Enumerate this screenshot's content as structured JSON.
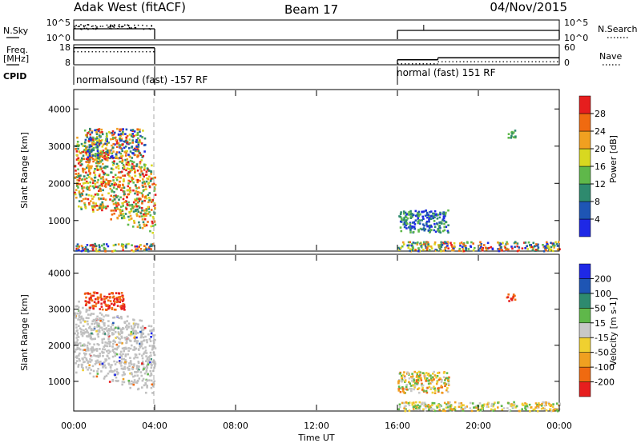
{
  "header": {
    "station": "Adak West (fitACF)",
    "beam": "Beam 17",
    "date": "04/Nov/2015"
  },
  "side_labels": {
    "nsky": "N.Sky",
    "freq_line1": "Freq.",
    "freq_line2": "[MHz]",
    "cpid": "CPID",
    "nsearch": "N.Search",
    "nave": "Nave"
  },
  "cpid_labels": [
    {
      "start_hour": 0,
      "text": "normalsound (fast) -157 RF"
    },
    {
      "start_hour": 16,
      "text": "normal (fast) 151 RF"
    }
  ],
  "colors": {
    "power": [
      "#1e28e6",
      "#1e55b4",
      "#2e8a6e",
      "#5fb84a",
      "#d8d820",
      "#f0a020",
      "#f06a10",
      "#e61e1e"
    ],
    "velocity": [
      "#e61e1e",
      "#f06a10",
      "#f0a020",
      "#f0d030",
      "#c8c8c8",
      "#5fb84a",
      "#2e8a6e",
      "#1e55b4",
      "#1e28e6"
    ],
    "scatter_gray": "#c0c0c0"
  },
  "chart_data": [
    {
      "type": "line",
      "title": "N.Sky / N.Search",
      "left_ticks": [
        "10^5",
        "10^0"
      ],
      "right_ticks": [
        "10^5",
        "10^0"
      ],
      "segments": [
        {
          "x_start_hour": 0,
          "x_end_hour": 4,
          "level": "noisy"
        },
        {
          "x_start_hour": 16,
          "x_end_hour": 24,
          "level": "flat"
        }
      ]
    },
    {
      "type": "line",
      "title": "Freq. / Nave",
      "left_ticks": [
        "18",
        "8"
      ],
      "right_ticks": [
        "60",
        "0"
      ],
      "freq_segments": [
        {
          "x_start_hour": 0,
          "x_end_hour": 4,
          "freq_mhz": 16.5
        },
        {
          "x_start_hour": 16,
          "x_end_hour": 18,
          "freq_mhz": 10.5
        },
        {
          "x_start_hour": 18,
          "x_end_hour": 24,
          "freq_mhz": 11.5
        }
      ]
    },
    {
      "type": "heatmap",
      "quantity": "Power",
      "ylabel": "Slant Range [km]",
      "colorbar_label": "Power [dB]",
      "colorbar_ticks": [
        "4",
        "8",
        "12",
        "16",
        "20",
        "24",
        "28"
      ],
      "yticks": [
        "1000",
        "2000",
        "3000",
        "4000"
      ],
      "ylim": [
        200,
        4500
      ],
      "xlim_hours": [
        0,
        24
      ],
      "dashed_line_hour": 4,
      "scatter_regions": [
        {
          "x_hours": [
            0,
            4
          ],
          "range_km": [
            1200,
            2600
          ],
          "values": "8-28 dB"
        },
        {
          "x_hours": [
            0.5,
            3.5
          ],
          "range_km": [
            2700,
            3500
          ],
          "values": "8-16 dB"
        },
        {
          "x_hours": [
            0,
            4
          ],
          "range_km": [
            200,
            400
          ],
          "values": "mixed"
        },
        {
          "x_hours": [
            16,
            18.5
          ],
          "range_km": [
            700,
            1300
          ],
          "values": "4-12 dB"
        },
        {
          "x_hours": [
            16,
            24
          ],
          "range_km": [
            200,
            450
          ],
          "values": "mixed"
        },
        {
          "x_hours": [
            21.3,
            21.8
          ],
          "range_km": [
            3250,
            3450
          ],
          "values": "12-16 dB"
        }
      ]
    },
    {
      "type": "heatmap",
      "quantity": "Velocity",
      "ylabel": "Slant Range [km]",
      "colorbar_label": "Velocity [m s-1]",
      "colorbar_ticks": [
        "-200",
        "-100",
        "-50",
        "-15",
        "15",
        "50",
        "100",
        "200"
      ],
      "yticks": [
        "1000",
        "2000",
        "3000",
        "4000"
      ],
      "ylim": [
        200,
        4500
      ],
      "xlim_hours": [
        0,
        24
      ],
      "xlabel": "Time UT",
      "xticks": [
        "00:00",
        "04:00",
        "08:00",
        "12:00",
        "16:00",
        "20:00",
        "00:00"
      ],
      "dashed_line_hour": 4,
      "scatter_regions": [
        {
          "x_hours": [
            0,
            4
          ],
          "range_km": [
            1200,
            2600
          ],
          "values": "ground scatter (gray)"
        },
        {
          "x_hours": [
            0.5,
            2.5
          ],
          "range_km": [
            3000,
            3500
          ],
          "values": "-200 to -100 m/s"
        },
        {
          "x_hours": [
            16,
            18.5
          ],
          "range_km": [
            700,
            1300
          ],
          "values": "-100 to 50 m/s"
        },
        {
          "x_hours": [
            16,
            24
          ],
          "range_km": [
            200,
            450
          ],
          "values": "-50 to 15 m/s"
        },
        {
          "x_hours": [
            21.3,
            21.8
          ],
          "range_km": [
            3250,
            3450
          ],
          "values": "-200 m/s"
        }
      ]
    }
  ]
}
